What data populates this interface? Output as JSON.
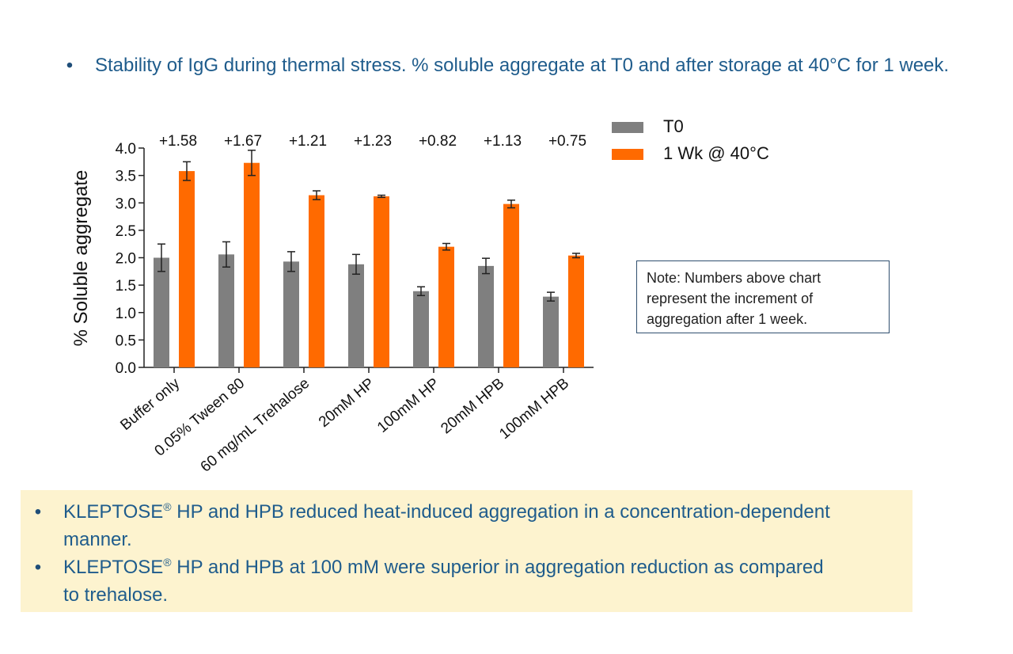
{
  "header": {
    "bullet": "•",
    "text": "Stability of IgG during thermal stress. % soluble aggregate at T0 and after storage at 40°C for 1 week."
  },
  "chart_data": {
    "type": "bar",
    "categories": [
      "Buffer only",
      "0.05% Tween 80",
      "60 mg/mL Trehalose",
      "20mM HP",
      "100mM HP",
      "20mM HPB",
      "100mM HPB"
    ],
    "series": [
      {
        "name": "T0",
        "color": "#7f7f7f",
        "values": [
          2.0,
          2.06,
          1.93,
          1.88,
          1.39,
          1.85,
          1.29
        ],
        "errors": [
          0.25,
          0.23,
          0.18,
          0.18,
          0.08,
          0.14,
          0.08
        ]
      },
      {
        "name": "1 Wk @ 40°C",
        "color": "#ff6a00",
        "values": [
          3.58,
          3.73,
          3.14,
          3.12,
          2.2,
          2.98,
          2.04
        ],
        "errors": [
          0.17,
          0.23,
          0.08,
          0.02,
          0.06,
          0.07,
          0.04
        ]
      }
    ],
    "increments": [
      "+1.58",
      "+1.67",
      "+1.21",
      "+1.23",
      "+0.82",
      "+1.13",
      "+0.75"
    ],
    "ylabel": "% Soluble aggregate",
    "xlabel": "",
    "ylim": [
      0,
      4.0
    ],
    "yticks": [
      "0.0",
      "0.5",
      "1.0",
      "1.5",
      "2.0",
      "2.5",
      "3.0",
      "3.5",
      "4.0"
    ],
    "legend_position": "top-right",
    "grid": false
  },
  "note": {
    "lines": [
      "Note: Numbers above chart",
      "represent the increment of",
      "aggregation after 1 week."
    ]
  },
  "summary": {
    "bullet": "•",
    "items": [
      {
        "prefix": "KLEPTOSE",
        "mark": "®",
        "line1": " HP and HPB reduced heat-induced aggregation in a concentration-dependent",
        "line2": "manner."
      },
      {
        "prefix": "KLEPTOSE",
        "mark": "®",
        "line1": " HP and HPB at 100 mM were superior in aggregation reduction as compared",
        "line2": "to trehalose."
      }
    ]
  }
}
